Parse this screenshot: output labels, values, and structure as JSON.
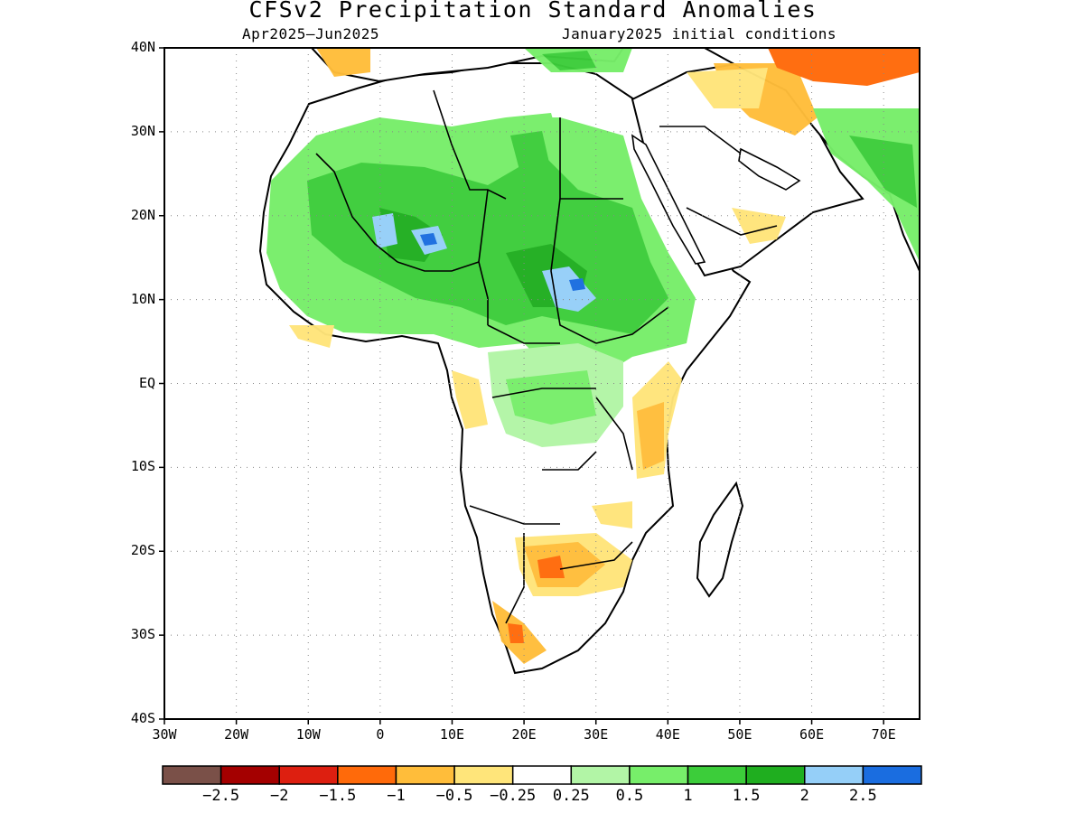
{
  "title": "CFSv2 Precipitation Standard Anomalies",
  "period": "Apr2025–Jun2025",
  "init": "January2025 initial conditions",
  "map": {
    "lat_labels": [
      "40N",
      "30N",
      "20N",
      "10N",
      "EQ",
      "10S",
      "20S",
      "30S",
      "40S"
    ],
    "lon_labels": [
      "30W",
      "20W",
      "10W",
      "0",
      "10E",
      "20E",
      "30E",
      "40E",
      "50E",
      "60E",
      "70E"
    ],
    "lat_range": [
      -40,
      40
    ],
    "lon_range": [
      -30,
      75
    ],
    "gridlines": "dotted"
  },
  "colorbar": {
    "colors": [
      "#7a5048",
      "#a40000",
      "#dd1f10",
      "#ff6a0a",
      "#ffbd3a",
      "#ffe57a",
      "#ffffff",
      "#b2f5a6",
      "#77ee6a",
      "#3ccd3a",
      "#1fae1f",
      "#95cff8",
      "#1a6de0"
    ],
    "labels": [
      "−2.5",
      "−2",
      "−1.5",
      "−1",
      "−0.5",
      "−0.25",
      "0.25",
      "0.5",
      "1",
      "1.5",
      "2",
      "2.5"
    ]
  }
}
